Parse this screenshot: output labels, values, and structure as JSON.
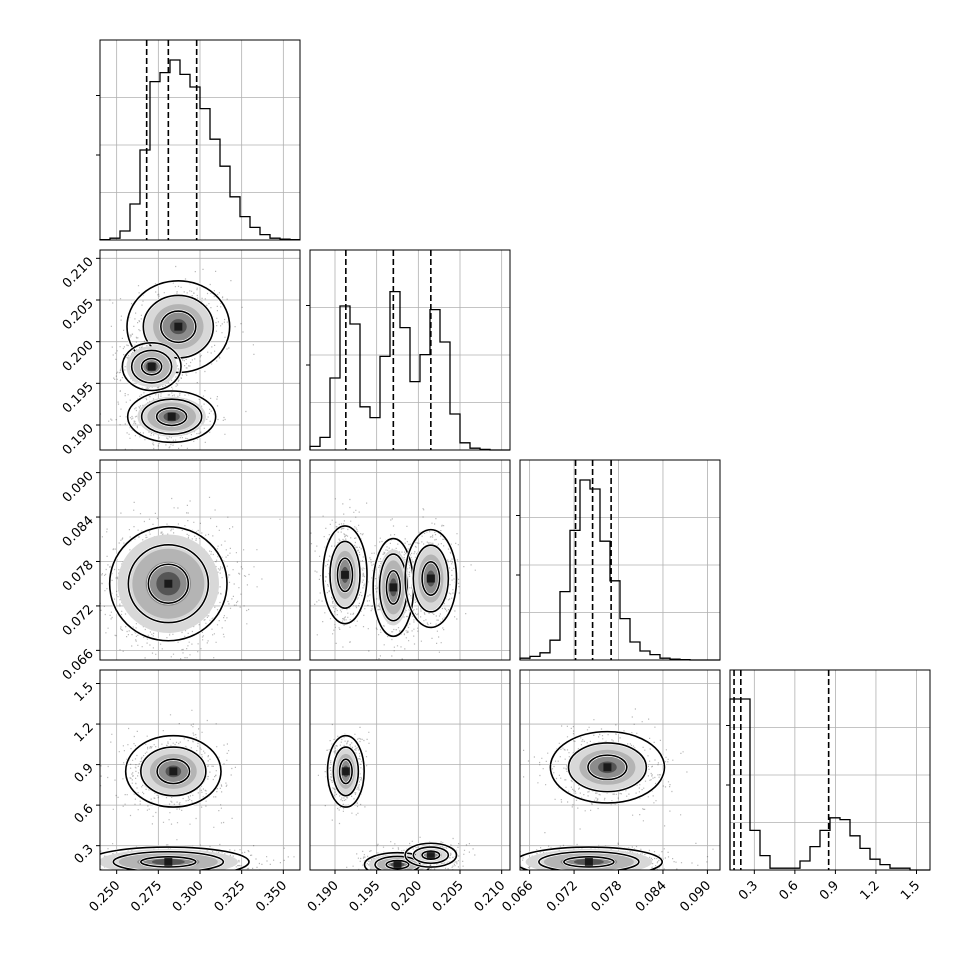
{
  "chart_data": {
    "type": "corner",
    "title": "",
    "grid": true,
    "parameters": [
      {
        "label": "",
        "range": [
          0.24,
          0.36
        ],
        "ticks": [
          0.25,
          0.275,
          0.3,
          0.325,
          0.35
        ],
        "tick_labels": [
          "0.250",
          "0.275",
          "0.300",
          "0.325",
          "0.350"
        ],
        "quantiles": [
          0.268,
          0.281,
          0.298
        ]
      },
      {
        "label": "",
        "range": [
          0.187,
          0.211
        ],
        "ticks": [
          0.19,
          0.195,
          0.2,
          0.205,
          0.21
        ],
        "tick_labels": [
          "0.190",
          "0.195",
          "0.200",
          "0.205",
          "0.210"
        ],
        "quantiles": [
          0.1913,
          0.197,
          0.2015
        ]
      },
      {
        "label": "",
        "range": [
          0.0647,
          0.0917
        ],
        "ticks": [
          0.066,
          0.072,
          0.078,
          0.084,
          0.09
        ],
        "tick_labels": [
          "0.066",
          "0.072",
          "0.078",
          "0.084",
          "0.090"
        ],
        "quantiles": [
          0.0722,
          0.0745,
          0.077
        ]
      },
      {
        "label": "",
        "range": [
          0.12,
          1.6
        ],
        "ticks": [
          0.3,
          0.6,
          0.9,
          1.2,
          1.5
        ],
        "tick_labels": [
          "0.3",
          "0.6",
          "0.9",
          "1.2",
          "1.5"
        ],
        "quantiles": [
          0.15,
          0.2,
          0.85
        ]
      }
    ],
    "histograms": [
      [
        0.002,
        0.01,
        0.05,
        0.2,
        0.5,
        0.88,
        0.93,
        1.0,
        0.92,
        0.85,
        0.73,
        0.56,
        0.41,
        0.24,
        0.13,
        0.07,
        0.03,
        0.01,
        0.005,
        0.002
      ],
      [
        0.02,
        0.07,
        0.4,
        0.8,
        0.7,
        0.24,
        0.18,
        0.52,
        0.88,
        0.68,
        0.38,
        0.53,
        0.78,
        0.6,
        0.2,
        0.04,
        0.01,
        0.003,
        0,
        0
      ],
      [
        0.01,
        0.02,
        0.04,
        0.11,
        0.38,
        0.72,
        1.0,
        0.95,
        0.66,
        0.44,
        0.23,
        0.1,
        0.05,
        0.03,
        0.01,
        0.005,
        0.002,
        0,
        0,
        0
      ],
      [
        0.95,
        0.95,
        0.22,
        0.08,
        0.01,
        0.01,
        0.01,
        0.05,
        0.13,
        0.22,
        0.29,
        0.28,
        0.19,
        0.12,
        0.06,
        0.03,
        0.01,
        0.01,
        0,
        0
      ]
    ],
    "pair_modes": [
      {
        "x": 0,
        "y": 1,
        "modes": [
          [
            0.287,
            0.2018,
            0.014,
            0.0025,
            0.8
          ],
          [
            0.271,
            0.197,
            0.008,
            0.0013,
            1.0
          ],
          [
            0.283,
            0.191,
            0.012,
            0.0014,
            0.9
          ]
        ]
      },
      {
        "x": 0,
        "y": 2,
        "modes": [
          [
            0.281,
            0.075,
            0.016,
            0.0035,
            1.0
          ]
        ]
      },
      {
        "x": 1,
        "y": 2,
        "modes": [
          [
            0.1912,
            0.0762,
            0.0012,
            0.003,
            0.8
          ],
          [
            0.197,
            0.0745,
            0.0011,
            0.003,
            0.9
          ],
          [
            0.2015,
            0.0757,
            0.0014,
            0.003,
            0.8
          ]
        ]
      },
      {
        "x": 0,
        "y": 3,
        "modes": [
          [
            0.284,
            0.85,
            0.013,
            0.12,
            0.8
          ],
          [
            0.281,
            0.18,
            0.022,
            0.05,
            1.0
          ]
        ]
      },
      {
        "x": 1,
        "y": 3,
        "modes": [
          [
            0.1913,
            0.85,
            0.001,
            0.12,
            0.8
          ],
          [
            0.1975,
            0.16,
            0.0018,
            0.04,
            1.0
          ],
          [
            0.2015,
            0.23,
            0.0014,
            0.04,
            0.7
          ]
        ]
      },
      {
        "x": 2,
        "y": 3,
        "modes": [
          [
            0.0765,
            0.88,
            0.0035,
            0.12,
            0.8
          ],
          [
            0.074,
            0.18,
            0.0045,
            0.05,
            1.0
          ]
        ]
      }
    ]
  }
}
